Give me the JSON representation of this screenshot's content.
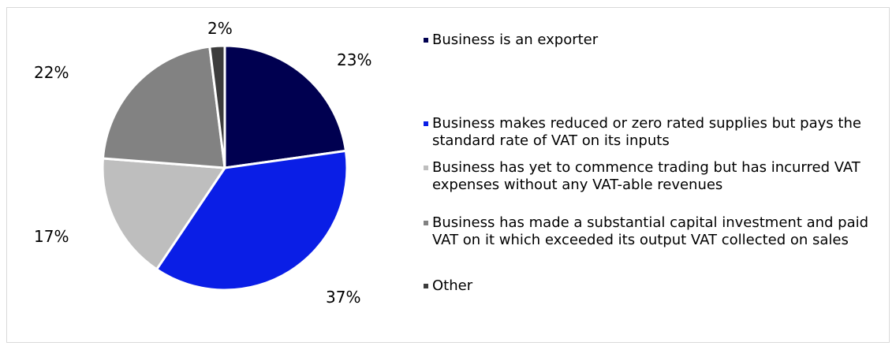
{
  "chart_data": {
    "type": "pie",
    "title": "",
    "series": [
      {
        "label": "Business is an exporter",
        "value": 23,
        "value_label": "23%",
        "color": "#000050"
      },
      {
        "label": "Business makes reduced or zero rated supplies but pays the standard rate of VAT on its inputs",
        "value": 37,
        "value_label": "37%",
        "color": "#0A1EE6"
      },
      {
        "label": "Business has yet to commence trading but has incurred VAT expenses without any VAT-able revenues",
        "value": 17,
        "value_label": "17%",
        "color": "#BEBEBE"
      },
      {
        "label": "Business has made a substantial capital investment and paid VAT on it which exceeded its output VAT collected on sales",
        "value": 22,
        "value_label": "22%",
        "color": "#828282"
      },
      {
        "label": "Other",
        "value": 2,
        "value_label": "2%",
        "color": "#3C3C3C"
      }
    ],
    "legend_position": "right"
  }
}
